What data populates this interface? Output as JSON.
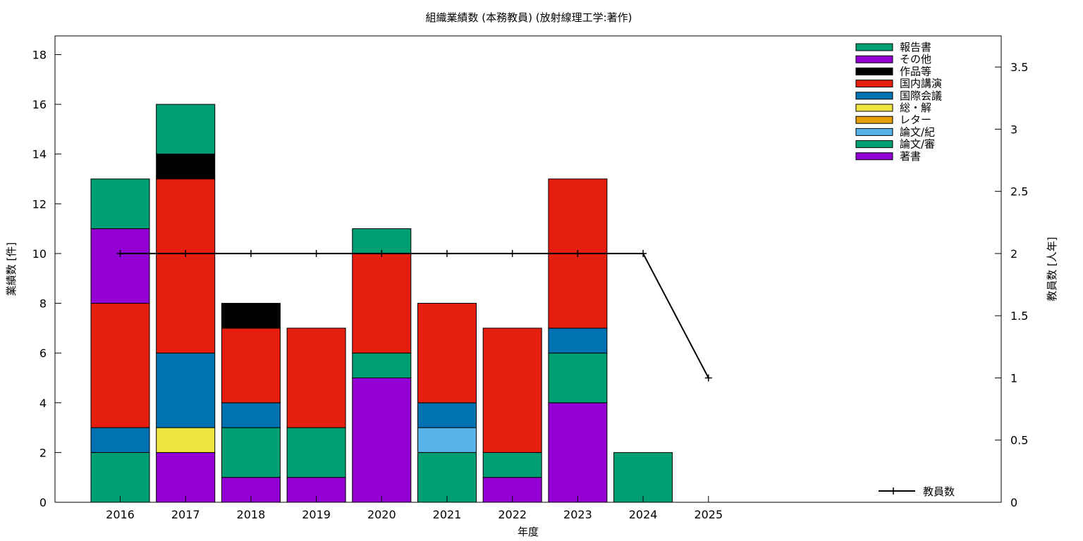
{
  "chart_data": {
    "type": "bar",
    "stacked": true,
    "title": "組織業績数 (本務教員) (放射線理工学:著作)",
    "xlabel": "年度",
    "ylabel": "業績数 [件]",
    "y2label": "教員数 [人年]",
    "categories": [
      "2016",
      "2017",
      "2018",
      "2019",
      "2020",
      "2021",
      "2022",
      "2023",
      "2024",
      "2025"
    ],
    "ylim": [
      0,
      18.75
    ],
    "y2lim": [
      0,
      3.75
    ],
    "yticks": [
      0,
      2,
      4,
      6,
      8,
      10,
      12,
      14,
      16,
      18
    ],
    "y2ticks": [
      0,
      0.5,
      1,
      1.5,
      2,
      2.5,
      3,
      3.5
    ],
    "y2tick_labels": [
      "0",
      "0.5",
      "1",
      "1.5",
      "2",
      "2.5",
      "3",
      "3.5"
    ],
    "grid": false,
    "legend_position": "top-right",
    "series": [
      {
        "name": "著書",
        "color": "#9400d3",
        "values": [
          0,
          2,
          1,
          1,
          5,
          0,
          1,
          4,
          0,
          0
        ]
      },
      {
        "name": "論文/審",
        "color": "#009e73",
        "values": [
          2,
          0,
          2,
          2,
          1,
          2,
          1,
          2,
          2,
          0
        ]
      },
      {
        "name": "論文/紀",
        "color": "#56b4e9",
        "values": [
          0,
          0,
          0,
          0,
          0,
          1,
          0,
          0,
          0,
          0
        ]
      },
      {
        "name": "レター",
        "color": "#e69f00",
        "values": [
          0,
          0,
          0,
          0,
          0,
          0,
          0,
          0,
          0,
          0
        ]
      },
      {
        "name": "総・解",
        "color": "#f0e442",
        "values": [
          0,
          1,
          0,
          0,
          0,
          0,
          0,
          0,
          0,
          0
        ]
      },
      {
        "name": "国際会議",
        "color": "#0072b2",
        "values": [
          1,
          3,
          1,
          0,
          0,
          1,
          0,
          1,
          0,
          0
        ]
      },
      {
        "name": "国内講演",
        "color": "#e51e10",
        "values": [
          5,
          7,
          3,
          4,
          4,
          4,
          5,
          6,
          0,
          0
        ]
      },
      {
        "name": "作品等",
        "color": "#000000",
        "values": [
          0,
          1,
          1,
          0,
          0,
          0,
          0,
          0,
          0,
          0
        ]
      },
      {
        "name": "その他",
        "color": "#9400d3",
        "values": [
          3,
          0,
          0,
          0,
          0,
          0,
          0,
          0,
          0,
          0
        ]
      },
      {
        "name": "報告書",
        "color": "#009e73",
        "values": [
          2,
          2,
          0,
          0,
          1,
          0,
          0,
          0,
          0,
          0
        ]
      }
    ],
    "line_series": {
      "name": "教員数",
      "color": "#000000",
      "axis": "y2",
      "values": [
        2,
        2,
        2,
        2,
        2,
        2,
        2,
        2,
        2,
        1
      ]
    }
  }
}
